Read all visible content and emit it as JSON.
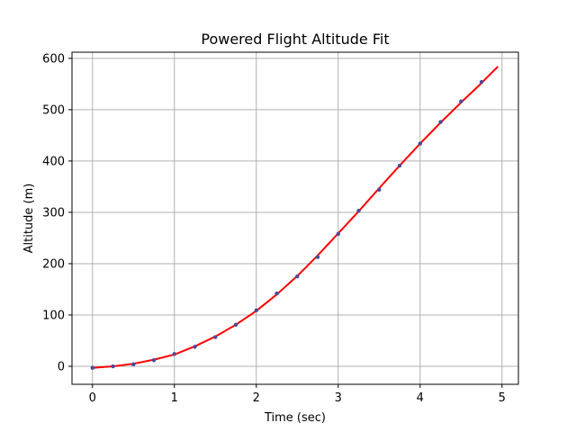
{
  "chart_data": {
    "type": "scatter",
    "title": "Powered Flight Altitude Fit",
    "xlabel": "Time (sec)",
    "ylabel": "Altitude (m)",
    "xlim": [
      -0.25,
      5.2
    ],
    "ylim": [
      -35,
      612
    ],
    "xticks": [
      0,
      1,
      2,
      3,
      4,
      5
    ],
    "yticks": [
      0,
      100,
      200,
      300,
      400,
      500,
      600
    ],
    "grid": true,
    "series": [
      {
        "type": "scatter",
        "color": "#4a4a9a",
        "x": [
          0,
          0.25,
          0.5,
          0.75,
          1.0,
          1.25,
          1.5,
          1.75,
          2.0,
          2.25,
          2.5,
          2.75,
          3.0,
          3.25,
          3.5,
          3.75,
          4.0,
          4.25,
          4.5,
          4.75
        ],
        "y": [
          -3,
          0,
          4,
          12,
          24,
          38,
          57,
          81,
          109,
          142,
          175,
          213,
          258,
          303,
          344,
          391,
          434,
          476,
          516,
          554
        ]
      },
      {
        "type": "line",
        "color": "#ff0000",
        "x": [
          0,
          0.25,
          0.5,
          0.75,
          1.0,
          1.25,
          1.5,
          1.75,
          2.0,
          2.25,
          2.5,
          2.75,
          3.0,
          3.25,
          3.5,
          3.75,
          4.0,
          4.25,
          4.5,
          4.75,
          4.95
        ],
        "y": [
          -3,
          0,
          5,
          13,
          23,
          39,
          58,
          81,
          108,
          140,
          176,
          216,
          259,
          302,
          347,
          391,
          434,
          475,
          514,
          552,
          584
        ]
      }
    ]
  }
}
